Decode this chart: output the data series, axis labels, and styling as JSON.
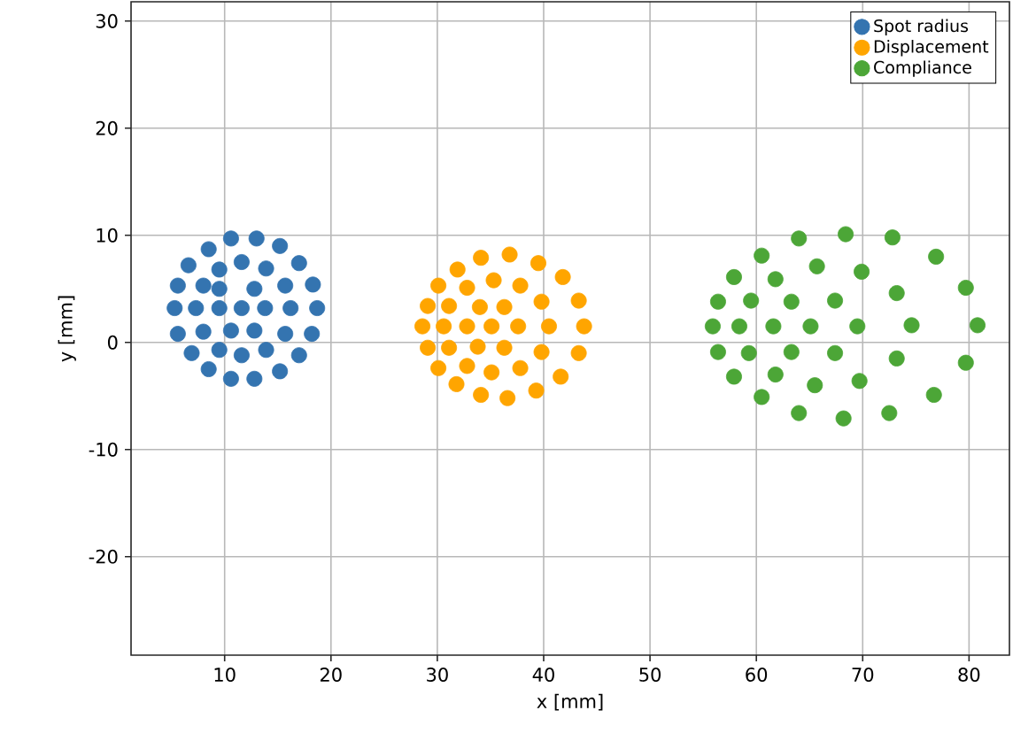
{
  "chart_data": {
    "type": "scatter",
    "xlabel": "x [mm]",
    "ylabel": "y [mm]",
    "xlim": [
      1.2,
      83.8
    ],
    "ylim": [
      -29.2,
      31.8
    ],
    "xticks": [
      10,
      20,
      30,
      40,
      50,
      60,
      70,
      80
    ],
    "yticks": [
      -20,
      -10,
      0,
      10,
      20,
      30
    ],
    "grid": true,
    "legend": "top right",
    "marker": "circle",
    "series": [
      {
        "name": "Spot radius",
        "color": "#3474b0",
        "x": [
          10.6,
          13.0,
          8.5,
          15.2,
          6.6,
          11.6,
          13.9,
          17.0,
          9.5,
          5.6,
          8.0,
          9.5,
          12.8,
          15.7,
          18.3,
          5.3,
          7.3,
          9.5,
          11.6,
          13.8,
          16.2,
          18.7,
          5.6,
          8.0,
          10.6,
          12.8,
          15.7,
          18.2,
          6.9,
          9.5,
          11.6,
          13.9,
          17.0,
          8.5,
          15.2,
          10.6,
          12.8
        ],
        "values": [
          9.7,
          9.7,
          8.7,
          9.0,
          7.2,
          7.5,
          6.9,
          7.4,
          6.8,
          5.3,
          5.3,
          5.0,
          5.0,
          5.3,
          5.4,
          3.2,
          3.2,
          3.2,
          3.2,
          3.2,
          3.2,
          3.2,
          0.8,
          1.0,
          1.1,
          1.1,
          0.8,
          0.8,
          -1.0,
          -0.7,
          -1.2,
          -0.7,
          -1.2,
          -2.5,
          -2.7,
          -3.4,
          -3.4
        ]
      },
      {
        "name": "Displacement",
        "color": "#ffa500",
        "x": [
          34.1,
          36.8,
          31.9,
          39.5,
          30.1,
          32.8,
          35.3,
          37.8,
          41.8,
          29.1,
          31.1,
          34.0,
          36.3,
          39.8,
          43.3,
          28.6,
          30.6,
          32.8,
          35.1,
          37.6,
          40.5,
          43.8,
          29.1,
          31.1,
          33.8,
          36.3,
          39.8,
          43.3,
          30.1,
          32.8,
          35.1,
          37.8,
          41.6,
          31.8,
          34.1,
          36.6,
          39.3
        ],
        "values": [
          7.9,
          8.2,
          6.8,
          7.4,
          5.3,
          5.1,
          5.8,
          5.3,
          6.1,
          3.4,
          3.4,
          3.3,
          3.3,
          3.8,
          3.9,
          1.5,
          1.5,
          1.5,
          1.5,
          1.5,
          1.5,
          1.5,
          -0.5,
          -0.5,
          -0.4,
          -0.5,
          -0.9,
          -1.0,
          -2.4,
          -2.2,
          -2.8,
          -2.4,
          -3.2,
          -3.9,
          -4.9,
          -5.2,
          -4.5
        ]
      },
      {
        "name": "Compliance",
        "color": "#4ca637",
        "x": [
          64.0,
          68.4,
          72.8,
          60.5,
          76.9,
          57.9,
          61.8,
          65.7,
          69.9,
          56.4,
          59.5,
          63.3,
          67.4,
          73.2,
          79.7,
          55.9,
          58.4,
          61.6,
          65.1,
          69.5,
          74.6,
          80.8,
          56.4,
          59.3,
          63.3,
          67.4,
          73.2,
          79.7,
          57.9,
          61.8,
          65.5,
          69.7,
          76.7,
          60.5,
          64.0,
          68.2,
          72.5
        ],
        "values": [
          9.7,
          10.1,
          9.8,
          8.1,
          8.0,
          6.1,
          5.9,
          7.1,
          6.6,
          3.8,
          3.9,
          3.8,
          3.9,
          4.6,
          5.1,
          1.5,
          1.5,
          1.5,
          1.5,
          1.5,
          1.6,
          1.6,
          -0.9,
          -1.0,
          -0.9,
          -1.0,
          -1.5,
          -1.9,
          -3.2,
          -3.0,
          -4.0,
          -3.6,
          -4.9,
          -5.1,
          -6.6,
          -7.1,
          -6.6
        ]
      }
    ]
  }
}
